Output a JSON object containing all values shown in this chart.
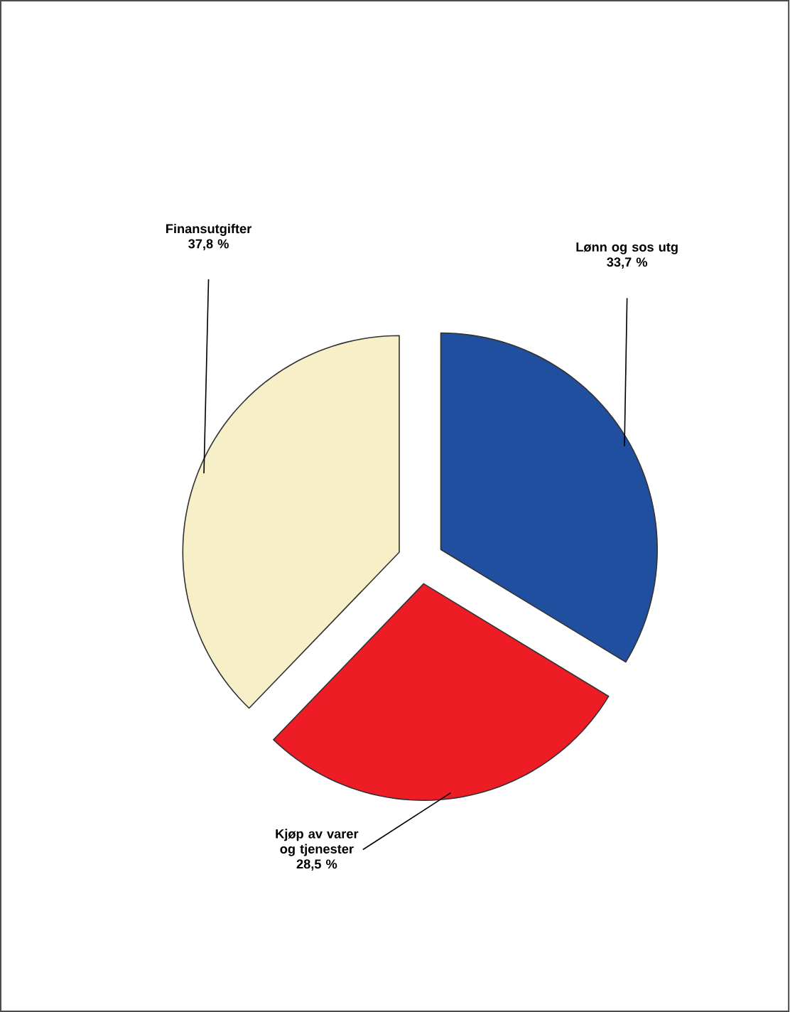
{
  "chart_data": {
    "type": "pie",
    "categories": [
      "Lønn og sos utg",
      "Kjøp av varer og tjenester",
      "Finansutgifter"
    ],
    "values": [
      33.7,
      28.5,
      37.8
    ],
    "colors": [
      "#1f4f9e",
      "#ee1c25",
      "#f7efc8"
    ],
    "value_labels": [
      "33,7 %",
      "28,5 %",
      "37,8 %"
    ]
  }
}
